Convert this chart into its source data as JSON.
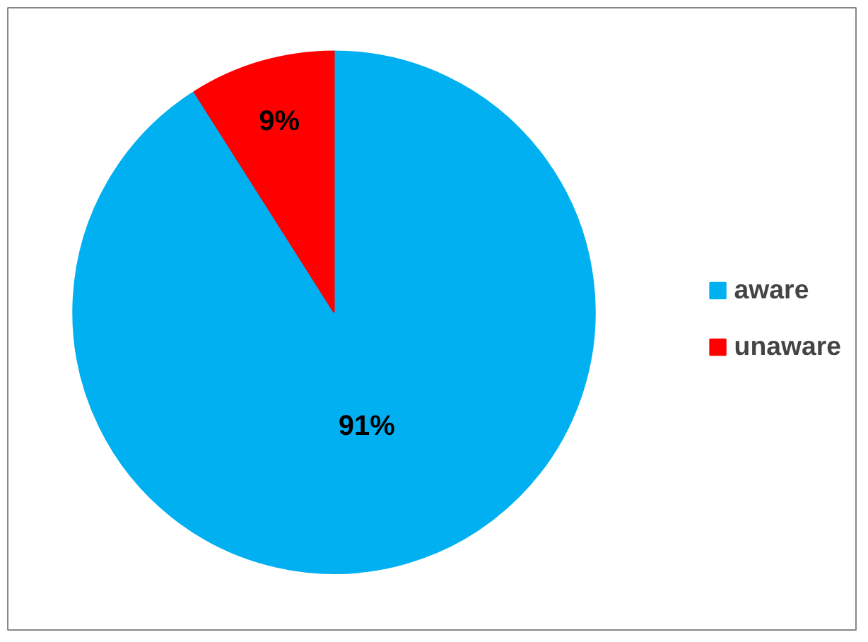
{
  "chart_data": {
    "type": "pie",
    "categories": [
      "aware",
      "unaware"
    ],
    "values": [
      91,
      9
    ],
    "colors": [
      "#00b0f0",
      "#ff0000"
    ],
    "value_labels": [
      "91%",
      "9%"
    ],
    "legend": "right"
  }
}
